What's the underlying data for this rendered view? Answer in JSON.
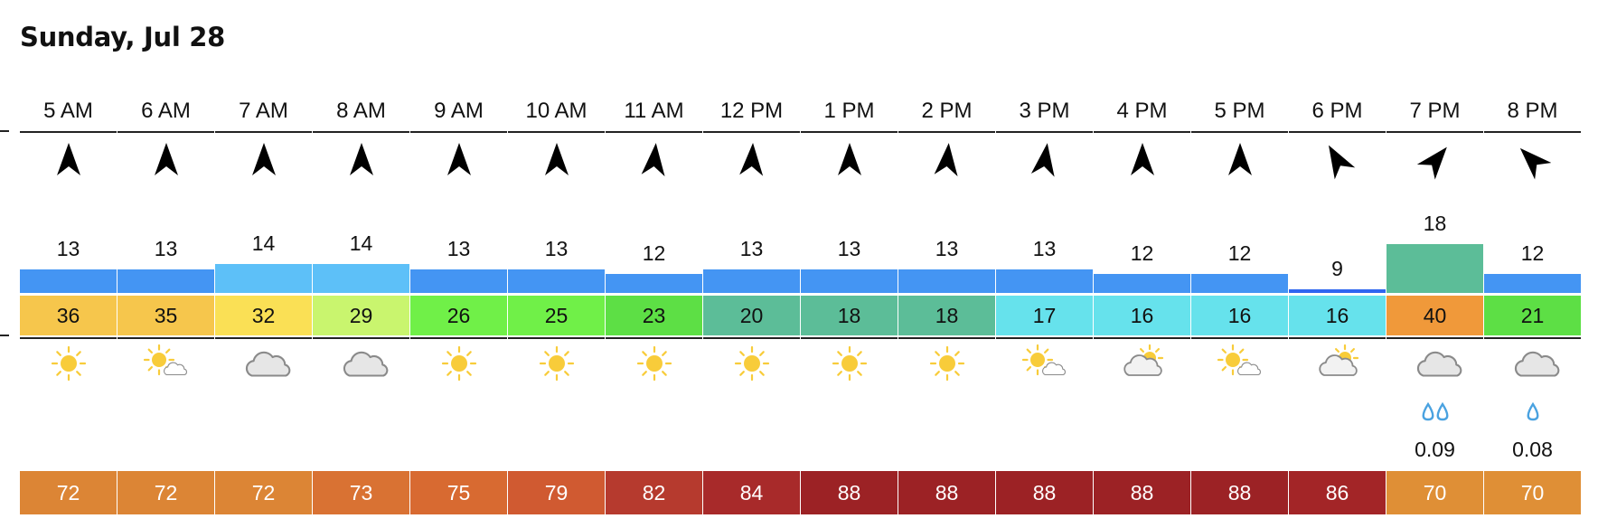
{
  "title": "Sunday, Jul 28",
  "colors": {
    "wind_normal": "#4495f3",
    "wind_light": "#5dc0f8",
    "wind_low": "#2f66f0",
    "wind_high": "#5cbd98"
  },
  "hours": [
    {
      "time": "5 AM",
      "wind_dir_deg": 0,
      "wind": "13",
      "wind_color": "#4495f3",
      "temp": "36",
      "temp_color": "#f6c64c",
      "sky_icon": "sun-icon",
      "drops": 0,
      "precip": "",
      "feel": "72",
      "feel_color": "#dc8535"
    },
    {
      "time": "6 AM",
      "wind_dir_deg": 0,
      "wind": "13",
      "wind_color": "#4495f3",
      "temp": "35",
      "temp_color": "#f6c64c",
      "sky_icon": "sun-cloud-icon",
      "drops": 0,
      "precip": "",
      "feel": "72",
      "feel_color": "#dc8535"
    },
    {
      "time": "7 AM",
      "wind_dir_deg": 0,
      "wind": "14",
      "wind_color": "#5dc0f8",
      "temp": "32",
      "temp_color": "#fae055",
      "sky_icon": "cloud-icon",
      "drops": 0,
      "precip": "",
      "feel": "72",
      "feel_color": "#dc8535"
    },
    {
      "time": "8 AM",
      "wind_dir_deg": 0,
      "wind": "14",
      "wind_color": "#5dc0f8",
      "temp": "29",
      "temp_color": "#c9f56e",
      "sky_icon": "cloud-icon",
      "drops": 0,
      "precip": "",
      "feel": "73",
      "feel_color": "#d97233"
    },
    {
      "time": "9 AM",
      "wind_dir_deg": 0,
      "wind": "13",
      "wind_color": "#4495f3",
      "temp": "26",
      "temp_color": "#70f048",
      "sky_icon": "sun-icon",
      "drops": 0,
      "precip": "",
      "feel": "75",
      "feel_color": "#d86a31"
    },
    {
      "time": "10 AM",
      "wind_dir_deg": 0,
      "wind": "13",
      "wind_color": "#4495f3",
      "temp": "25",
      "temp_color": "#70f048",
      "sky_icon": "sun-icon",
      "drops": 0,
      "precip": "",
      "feel": "79",
      "feel_color": "#d05a31"
    },
    {
      "time": "11 AM",
      "wind_dir_deg": 5,
      "wind": "12",
      "wind_color": "#4495f3",
      "temp": "23",
      "temp_color": "#5ddf45",
      "sky_icon": "sun-icon",
      "drops": 0,
      "precip": "",
      "feel": "82",
      "feel_color": "#b63a2e"
    },
    {
      "time": "12 PM",
      "wind_dir_deg": 3,
      "wind": "13",
      "wind_color": "#4495f3",
      "temp": "20",
      "temp_color": "#5cbd98",
      "sky_icon": "sun-icon",
      "drops": 0,
      "precip": "",
      "feel": "84",
      "feel_color": "#a82a2a"
    },
    {
      "time": "1 PM",
      "wind_dir_deg": 0,
      "wind": "13",
      "wind_color": "#4495f3",
      "temp": "18",
      "temp_color": "#5cbd98",
      "sky_icon": "sun-icon",
      "drops": 0,
      "precip": "",
      "feel": "88",
      "feel_color": "#9c2225"
    },
    {
      "time": "2 PM",
      "wind_dir_deg": 5,
      "wind": "13",
      "wind_color": "#4495f3",
      "temp": "18",
      "temp_color": "#5cbd98",
      "sky_icon": "sun-icon",
      "drops": 0,
      "precip": "",
      "feel": "88",
      "feel_color": "#9c2225"
    },
    {
      "time": "3 PM",
      "wind_dir_deg": 8,
      "wind": "13",
      "wind_color": "#4495f3",
      "temp": "17",
      "temp_color": "#66e2ec",
      "sky_icon": "sun-cloud-icon",
      "drops": 0,
      "precip": "",
      "feel": "88",
      "feel_color": "#9c2225"
    },
    {
      "time": "4 PM",
      "wind_dir_deg": 0,
      "wind": "12",
      "wind_color": "#4495f3",
      "temp": "16",
      "temp_color": "#66e2ec",
      "sky_icon": "cloud-sun-icon",
      "drops": 0,
      "precip": "",
      "feel": "88",
      "feel_color": "#9c2225"
    },
    {
      "time": "5 PM",
      "wind_dir_deg": 0,
      "wind": "12",
      "wind_color": "#4495f3",
      "temp": "16",
      "temp_color": "#66e2ec",
      "sky_icon": "sun-cloud-icon",
      "drops": 0,
      "precip": "",
      "feel": "88",
      "feel_color": "#9c2225"
    },
    {
      "time": "6 PM",
      "wind_dir_deg": -30,
      "wind": "9",
      "wind_color": "#2f66f0",
      "temp": "16",
      "temp_color": "#66e2ec",
      "sky_icon": "cloud-sun-icon",
      "drops": 0,
      "precip": "",
      "feel": "86",
      "feel_color": "#a32527"
    },
    {
      "time": "7 PM",
      "wind_dir_deg": 40,
      "wind": "18",
      "wind_color": "#5cbd98",
      "temp": "40",
      "temp_color": "#f0993a",
      "sky_icon": "cloud-icon",
      "drops": 2,
      "precip": "0.09",
      "feel": "70",
      "feel_color": "#df8f36"
    },
    {
      "time": "8 PM",
      "wind_dir_deg": -45,
      "wind": "12",
      "wind_color": "#4495f3",
      "temp": "21",
      "temp_color": "#5ddf45",
      "sky_icon": "cloud-icon",
      "drops": 1,
      "precip": "0.08",
      "feel": "70",
      "feel_color": "#df8f36"
    }
  ]
}
